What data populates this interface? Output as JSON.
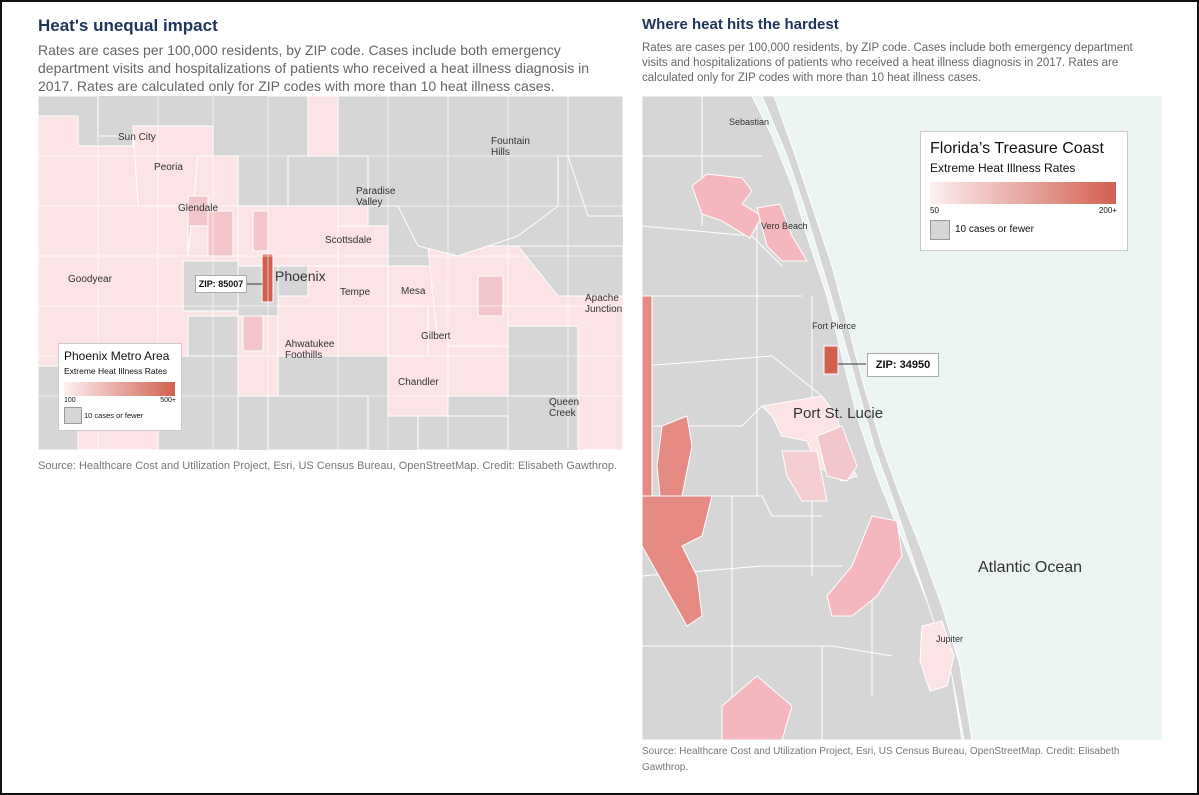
{
  "left": {
    "title": "Heat's unequal impact",
    "description": "Rates are cases per 100,000 residents, by ZIP code. Cases include both emergency department visits and hospitalizations of patients who received a heat illness diagnosis in 2017. Rates are calculated only for ZIP codes with more than 10 heat illness cases.",
    "source": "Source: Healthcare Cost and Utilization Project, Esri, US Census Bureau, OpenStreetMap. Credit: Elisabeth Gawthrop.",
    "places": {
      "sun_city": "Sun City",
      "peoria": "Peoria",
      "glendale": "Glendale",
      "fountain_hills": [
        "Fountain",
        "Hills"
      ],
      "paradise_valley": [
        "Paradise",
        "Valley"
      ],
      "scottsdale": "Scottsdale",
      "goodyear": "Goodyear",
      "phoenix": "Phoenix",
      "tempe": "Tempe",
      "mesa": "Mesa",
      "apache_junction": [
        "Apache",
        "Junction"
      ],
      "gilbert": "Gilbert",
      "ahwatukee": [
        "Ahwatukee",
        "Foothills"
      ],
      "chandler": "Chandler",
      "queen_creek": [
        "Queen",
        "Creek"
      ]
    },
    "callout": "ZIP: 85007",
    "legend": {
      "title": "Phoenix Metro Area",
      "subtitle": "Extreme Heat Illness Rates",
      "min": "100",
      "max": "500+",
      "no_data": "10 cases or fewer"
    }
  },
  "right": {
    "title": "Where heat hits the hardest",
    "description": "Rates are cases per 100,000 residents, by ZIP code. Cases include both emergency department visits and hospitalizations of patients who received a heat illness diagnosis in 2017. Rates are calculated only for ZIP codes with more than 10 heat illness cases.",
    "source": "Source: Healthcare Cost and Utilization Project, Esri, US Census Bureau, OpenStreetMap. Credit: Elisabeth Gawthrop.",
    "places": {
      "sebastian": "Sebastian",
      "vero_beach": "Vero Beach",
      "fort_pierce": "Fort Pierce",
      "port_st_lucie": "Port St. Lucie",
      "atlantic_ocean": "Atlantic Ocean",
      "jupiter": "Jupiter"
    },
    "callout": "ZIP: 34950",
    "legend": {
      "title": "Florida’s Treasure Coast",
      "subtitle": "Extreme Heat Illness Rates",
      "min": "50",
      "max": "200+",
      "no_data": "10 cases or fewer"
    }
  },
  "colors": {
    "no_data": "#d6d6d6",
    "low": "#fbe3e6",
    "mid": "#f3b7bd",
    "high": "#e58b84",
    "max": "#d2604f",
    "ocean": "#ecf4f4",
    "title": "#1d3557"
  }
}
